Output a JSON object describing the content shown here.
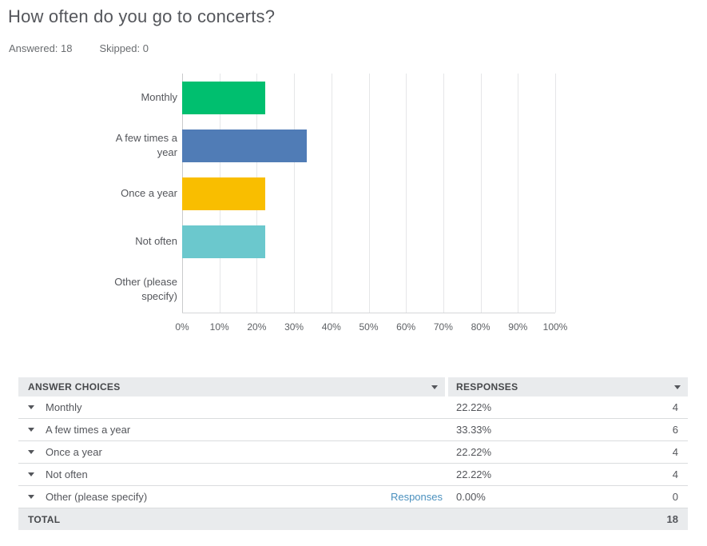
{
  "header": {
    "title": "How often do you go to concerts?",
    "answered": "Answered: 18",
    "skipped": "Skipped: 0"
  },
  "chart_data": {
    "type": "bar",
    "orientation": "horizontal",
    "title": "How often do you go to concerts?",
    "categories": [
      "Monthly",
      "A few times a year",
      "Once a year",
      "Not often",
      "Other (please specify)"
    ],
    "values": [
      22.22,
      33.33,
      22.22,
      22.22,
      0
    ],
    "counts": [
      4,
      6,
      4,
      4,
      0
    ],
    "bar_colors": [
      "#00BF6F",
      "#507CB6",
      "#F9BE00",
      "#6BC8CD",
      "#9E9E9E"
    ],
    "x_ticks": [
      "0%",
      "10%",
      "20%",
      "30%",
      "40%",
      "50%",
      "60%",
      "70%",
      "80%",
      "90%",
      "100%"
    ],
    "xlim": [
      0,
      100
    ],
    "grid": "vertical",
    "legend": "none"
  },
  "table": {
    "columns": [
      {
        "label": "ANSWER CHOICES"
      },
      {
        "label": "RESPONSES"
      }
    ],
    "rows": [
      {
        "label": "Monthly",
        "percent": "22.22%",
        "count": "4"
      },
      {
        "label": "A few times a year",
        "percent": "33.33%",
        "count": "6"
      },
      {
        "label": "Once a year",
        "percent": "22.22%",
        "count": "4"
      },
      {
        "label": "Not often",
        "percent": "22.22%",
        "count": "4"
      },
      {
        "label": "Other (please specify)",
        "link": "Responses",
        "percent": "0.00%",
        "count": "0"
      }
    ],
    "total": {
      "label": "TOTAL",
      "count": "18"
    }
  },
  "colors": {
    "link_blue": "#4A90BE",
    "header_row_bg": "#E9EBED",
    "text_gray": "#54565B",
    "gridline": "#E5E6E8"
  }
}
